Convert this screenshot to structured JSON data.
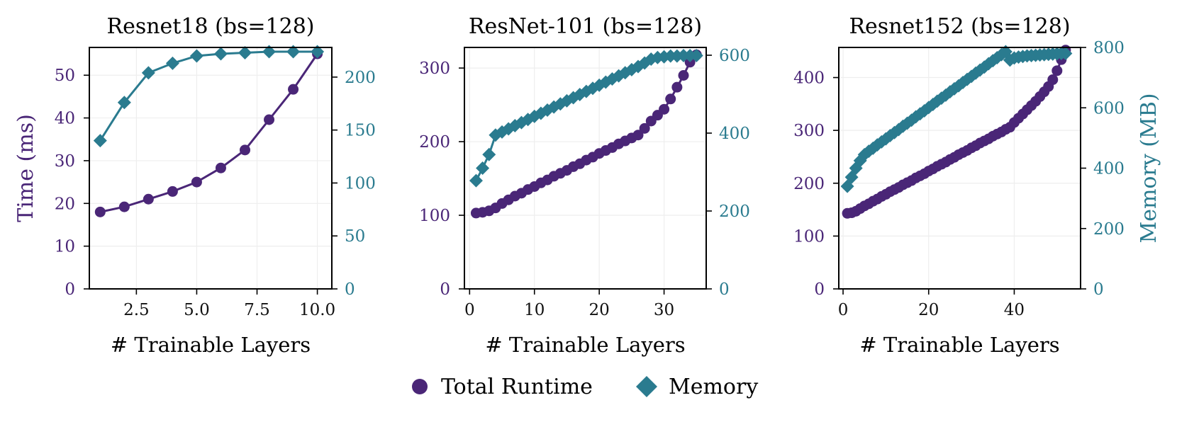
{
  "colors": {
    "runtime": "#4a2677",
    "memory": "#2a7b8f",
    "axis": "#000000",
    "grid": "#eeeeee"
  },
  "shared": {
    "left_ylabel": "Time (ms)",
    "right_ylabel": "Memory (MB)",
    "legend": [
      {
        "label": "Total Runtime",
        "marker": "circle"
      },
      {
        "label": "Memory",
        "marker": "diamond"
      }
    ]
  },
  "chart_data": [
    {
      "type": "line",
      "title": "Resnet18 (bs=128)",
      "xlabel": "# Trainable Layers",
      "xlim": [
        0.55,
        10.6
      ],
      "xticks": [
        2.5,
        5.0,
        7.5,
        10.0
      ],
      "xtick_labels": [
        "2.5",
        "5.0",
        "7.5",
        "10.0"
      ],
      "ylim_left": [
        0,
        56.5
      ],
      "yticks_left": [
        0,
        10,
        20,
        30,
        40,
        50
      ],
      "ylim_right": [
        0,
        228
      ],
      "yticks_right": [
        0,
        50,
        100,
        150,
        200
      ],
      "connected": true,
      "grid": true,
      "show_left_label": true,
      "show_right_label": false,
      "series": [
        {
          "name": "Total Runtime",
          "axis": "left",
          "marker": "circle",
          "x": [
            1,
            2,
            3,
            4,
            5,
            6,
            7,
            8,
            9,
            10
          ],
          "y": [
            18.0,
            19.2,
            21.0,
            22.8,
            25.0,
            28.3,
            32.5,
            39.6,
            46.7,
            55.0
          ]
        },
        {
          "name": "Memory",
          "axis": "right",
          "marker": "diamond",
          "x": [
            1,
            2,
            3,
            4,
            5,
            6,
            7,
            8,
            9,
            10
          ],
          "y": [
            140,
            176,
            204,
            213,
            220,
            222,
            223,
            224,
            224,
            224
          ]
        }
      ]
    },
    {
      "type": "line",
      "title": "ResNet-101 (bs=128)",
      "xlabel": "# Trainable Layers",
      "xlim": [
        -0.8,
        36.5
      ],
      "xticks": [
        0,
        10,
        20,
        30
      ],
      "xtick_labels": [
        "0",
        "10",
        "20",
        "30"
      ],
      "ylim_left": [
        0,
        328
      ],
      "yticks_left": [
        0,
        100,
        200,
        300
      ],
      "ylim_right": [
        0,
        620
      ],
      "yticks_right": [
        0,
        200,
        400,
        600
      ],
      "connected": true,
      "grid": true,
      "show_left_label": false,
      "show_right_label": false,
      "series": [
        {
          "name": "Total Runtime",
          "axis": "left",
          "marker": "circle",
          "x": [
            1,
            2,
            3,
            4,
            5,
            6,
            7,
            8,
            9,
            10,
            11,
            12,
            13,
            14,
            15,
            16,
            17,
            18,
            19,
            20,
            21,
            22,
            23,
            24,
            25,
            26,
            27,
            28,
            29,
            30,
            31,
            32,
            33,
            34,
            35
          ],
          "y": [
            103,
            104,
            106,
            110,
            116,
            121,
            126,
            130,
            135,
            139,
            144,
            148,
            153,
            157,
            161,
            166,
            170,
            175,
            179,
            184,
            188,
            192,
            197,
            201,
            205,
            209,
            218,
            228,
            236,
            244,
            258,
            274,
            290,
            308,
            318
          ]
        },
        {
          "name": "Memory",
          "axis": "right",
          "marker": "diamond",
          "x": [
            1,
            2,
            3,
            4,
            5,
            6,
            7,
            8,
            9,
            10,
            11,
            12,
            13,
            14,
            15,
            16,
            17,
            18,
            19,
            20,
            21,
            22,
            23,
            24,
            25,
            26,
            27,
            28,
            29,
            30,
            31,
            32,
            33,
            34,
            35
          ],
          "y": [
            278,
            310,
            345,
            395,
            403,
            411,
            419,
            427,
            435,
            443,
            451,
            459,
            467,
            475,
            483,
            491,
            499,
            507,
            515,
            523,
            531,
            539,
            547,
            555,
            563,
            571,
            580,
            590,
            594,
            596,
            598,
            598,
            599,
            599,
            599
          ]
        }
      ]
    },
    {
      "type": "line",
      "title": "Resnet152 (bs=128)",
      "xlabel": "# Trainable Layers",
      "xlim": [
        -1.0,
        55.5
      ],
      "xticks": [
        0,
        20,
        40
      ],
      "xtick_labels": [
        "0",
        "20",
        "40"
      ],
      "ylim_left": [
        0,
        457
      ],
      "yticks_left": [
        0,
        100,
        200,
        300,
        400
      ],
      "ylim_right": [
        0,
        800
      ],
      "yticks_right": [
        0,
        200,
        400,
        600,
        800
      ],
      "connected": true,
      "grid": true,
      "show_left_label": false,
      "show_right_label": true,
      "series": [
        {
          "name": "Total Runtime",
          "axis": "left",
          "marker": "circle",
          "x": [
            1,
            2,
            3,
            4,
            5,
            6,
            7,
            8,
            9,
            10,
            11,
            12,
            13,
            14,
            15,
            16,
            17,
            18,
            19,
            20,
            21,
            22,
            23,
            24,
            25,
            26,
            27,
            28,
            29,
            30,
            31,
            32,
            33,
            34,
            35,
            36,
            37,
            38,
            39,
            40,
            41,
            42,
            43,
            44,
            45,
            46,
            47,
            48,
            49,
            50,
            51,
            52
          ],
          "y": [
            143,
            144,
            147,
            152,
            157,
            161,
            166,
            170,
            175,
            179,
            184,
            188,
            192,
            197,
            201,
            205,
            210,
            214,
            218,
            223,
            227,
            232,
            236,
            240,
            245,
            249,
            254,
            258,
            262,
            267,
            271,
            276,
            280,
            284,
            289,
            293,
            297,
            302,
            306,
            315,
            323,
            331,
            339,
            347,
            355,
            364,
            373,
            383,
            396,
            413,
            434,
            452
          ]
        },
        {
          "name": "Memory",
          "axis": "right",
          "marker": "diamond",
          "x": [
            1,
            2,
            3,
            4,
            5,
            6,
            7,
            8,
            9,
            10,
            11,
            12,
            13,
            14,
            15,
            16,
            17,
            18,
            19,
            20,
            21,
            22,
            23,
            24,
            25,
            26,
            27,
            28,
            29,
            30,
            31,
            32,
            33,
            34,
            35,
            36,
            37,
            38,
            39,
            40,
            41,
            42,
            43,
            44,
            45,
            46,
            47,
            48,
            49,
            50,
            51,
            52
          ],
          "y": [
            340,
            370,
            400,
            425,
            445,
            456,
            466,
            477,
            487,
            497,
            508,
            518,
            528,
            539,
            549,
            559,
            570,
            580,
            590,
            601,
            611,
            622,
            632,
            642,
            653,
            663,
            673,
            684,
            694,
            704,
            715,
            725,
            735,
            746,
            756,
            766,
            776,
            786,
            758,
            765,
            768,
            770,
            772,
            773,
            774,
            775,
            776,
            777,
            778,
            779,
            780,
            780
          ]
        }
      ]
    }
  ]
}
